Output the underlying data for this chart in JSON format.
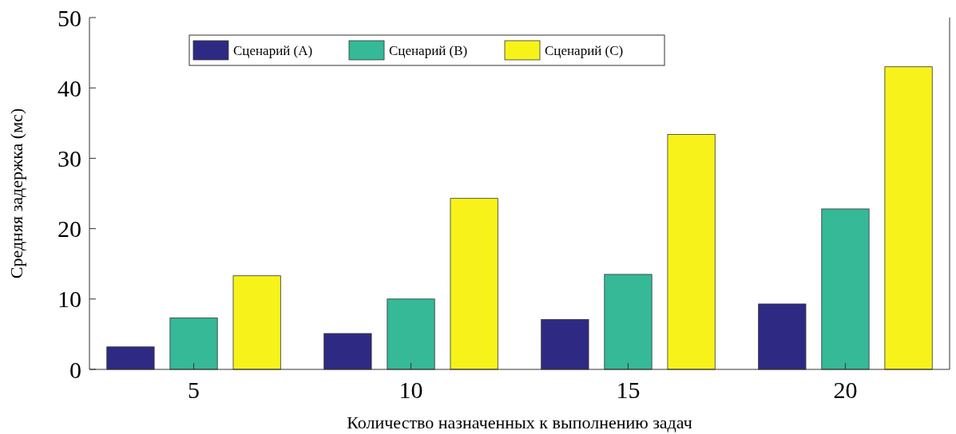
{
  "chart_data": {
    "type": "bar",
    "xlabel": "Количество назначенных к выполнению задач",
    "ylabel": "Средняя задержка (мс)",
    "categories": [
      "5",
      "10",
      "15",
      "20"
    ],
    "series": [
      {
        "name": "Сценарий (A)",
        "color": "#2e2a84",
        "values": [
          3.2,
          5.1,
          7.1,
          9.3
        ]
      },
      {
        "name": "Сценарий (B)",
        "color": "#35b996",
        "values": [
          7.3,
          10.0,
          13.5,
          22.8
        ]
      },
      {
        "name": "Сценарий (C)",
        "color": "#f7f31a",
        "values": [
          13.3,
          24.3,
          33.4,
          43.0
        ]
      }
    ],
    "ylim": [
      0,
      50
    ],
    "yticks": [
      0,
      10,
      20,
      30,
      40,
      50
    ],
    "legend": "top left",
    "grid": false
  }
}
